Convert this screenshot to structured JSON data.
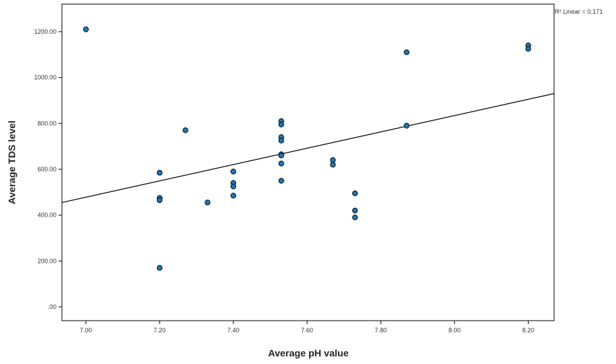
{
  "chart_data": {
    "type": "scatter",
    "xlabel": "Average pH value",
    "ylabel": "Average TDS level",
    "xlim": [
      6.935,
      8.27
    ],
    "ylim": [
      -60,
      1320
    ],
    "x_ticks": [
      {
        "value": 7.0,
        "label": "7.00"
      },
      {
        "value": 7.2,
        "label": "7.20"
      },
      {
        "value": 7.4,
        "label": "7.40"
      },
      {
        "value": 7.6,
        "label": "7.60"
      },
      {
        "value": 7.8,
        "label": "7.80"
      },
      {
        "value": 8.0,
        "label": "8.00"
      },
      {
        "value": 8.2,
        "label": "8.20"
      }
    ],
    "y_ticks": [
      {
        "value": 0,
        "label": ".00"
      },
      {
        "value": 200,
        "label": "200.00"
      },
      {
        "value": 400,
        "label": "400.00"
      },
      {
        "value": 600,
        "label": "600.00"
      },
      {
        "value": 800,
        "label": "800.00"
      },
      {
        "value": 1000,
        "label": "1000.00"
      },
      {
        "value": 1200,
        "label": "1200.00"
      }
    ],
    "grid": false,
    "point_color": "#1f77b4",
    "points": [
      {
        "x": 7.0,
        "y": 1210
      },
      {
        "x": 7.2,
        "y": 585
      },
      {
        "x": 7.2,
        "y": 475
      },
      {
        "x": 7.2,
        "y": 465
      },
      {
        "x": 7.2,
        "y": 170
      },
      {
        "x": 7.27,
        "y": 770
      },
      {
        "x": 7.33,
        "y": 455
      },
      {
        "x": 7.4,
        "y": 590
      },
      {
        "x": 7.4,
        "y": 540
      },
      {
        "x": 7.4,
        "y": 525
      },
      {
        "x": 7.4,
        "y": 485
      },
      {
        "x": 7.53,
        "y": 810
      },
      {
        "x": 7.53,
        "y": 795
      },
      {
        "x": 7.53,
        "y": 740
      },
      {
        "x": 7.53,
        "y": 725
      },
      {
        "x": 7.53,
        "y": 665
      },
      {
        "x": 7.53,
        "y": 660
      },
      {
        "x": 7.53,
        "y": 625
      },
      {
        "x": 7.53,
        "y": 550
      },
      {
        "x": 7.67,
        "y": 640
      },
      {
        "x": 7.67,
        "y": 620
      },
      {
        "x": 7.73,
        "y": 495
      },
      {
        "x": 7.73,
        "y": 420
      },
      {
        "x": 7.73,
        "y": 390
      },
      {
        "x": 7.87,
        "y": 1110
      },
      {
        "x": 7.87,
        "y": 790
      },
      {
        "x": 8.2,
        "y": 1140
      },
      {
        "x": 8.2,
        "y": 1125
      }
    ],
    "fit_line": {
      "type": "linear",
      "label": "R² Linear = 0.171",
      "points": [
        {
          "x": 6.935,
          "y": 455
        },
        {
          "x": 8.27,
          "y": 930
        }
      ]
    }
  }
}
